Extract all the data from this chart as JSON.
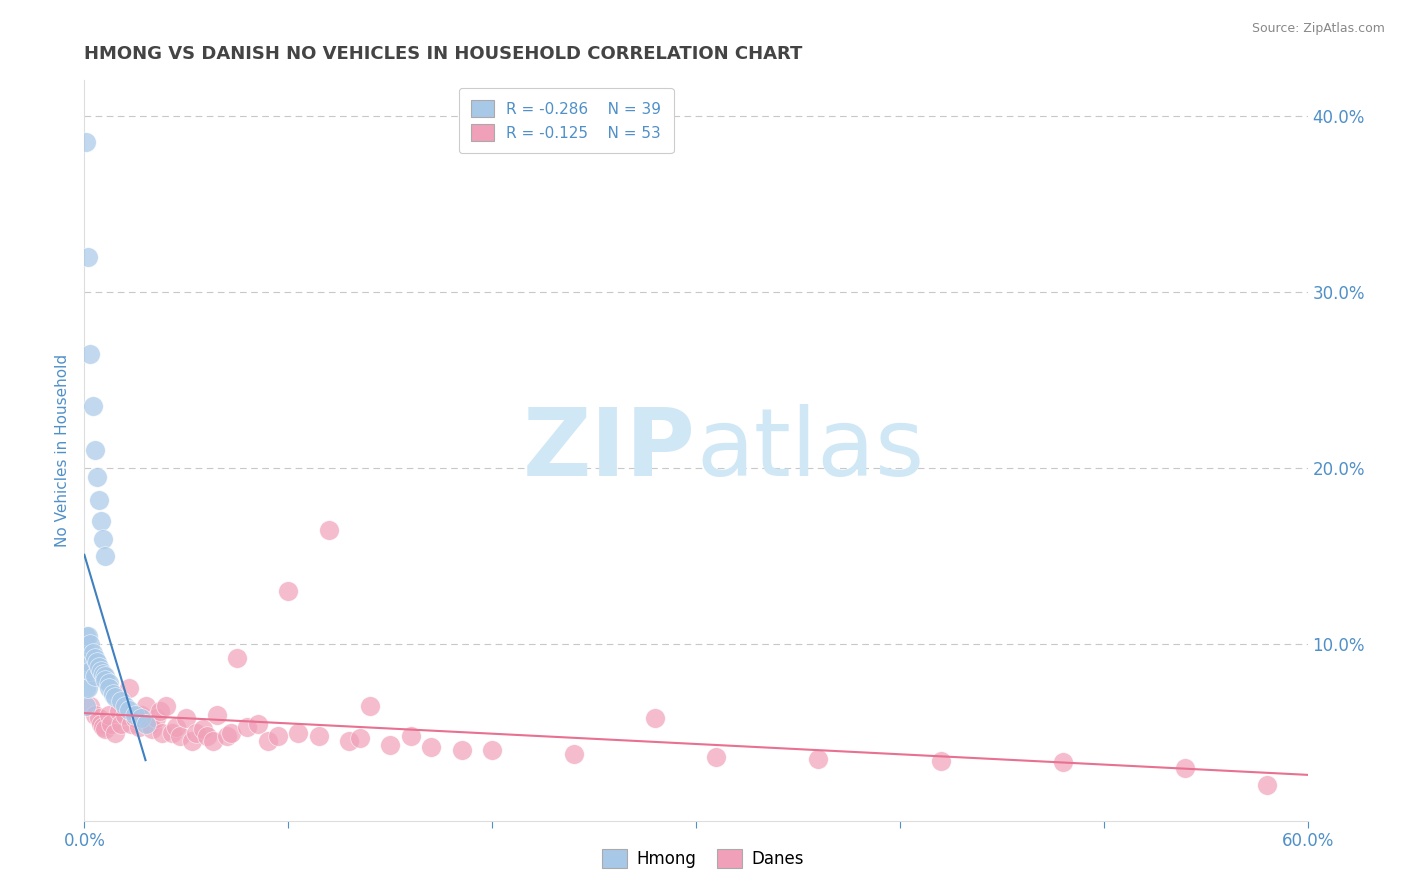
{
  "title": "HMONG VS DANISH NO VEHICLES IN HOUSEHOLD CORRELATION CHART",
  "source_text": "Source: ZipAtlas.com",
  "ylabel": "No Vehicles in Household",
  "xlim": [
    0.0,
    0.6
  ],
  "ylim": [
    0.0,
    0.42
  ],
  "xtick_values": [
    0.0,
    0.1,
    0.2,
    0.3,
    0.4,
    0.5,
    0.6
  ],
  "xticklabels": [
    "0.0%",
    "",
    "",
    "",
    "",
    "",
    "60.0%"
  ],
  "ytick_right_labels": [
    "10.0%",
    "20.0%",
    "30.0%",
    "40.0%"
  ],
  "ytick_right_values": [
    0.1,
    0.2,
    0.3,
    0.4
  ],
  "grid_color": "#c8c8c8",
  "background_color": "#ffffff",
  "hmong_color": "#a8c8e8",
  "danes_color": "#f0a0b8",
  "hmong_line_color": "#4080c0",
  "danes_line_color": "#e87090",
  "legend_r_hmong": "R = -0.286",
  "legend_n_hmong": "N = 39",
  "legend_r_danes": "R = -0.125",
  "legend_n_danes": "N = 53",
  "watermark_zip": "ZIP",
  "watermark_atlas": "atlas",
  "watermark_color": "#d0e8f5",
  "title_color": "#444444",
  "axis_label_color": "#5090c8",
  "tick_label_color": "#5090c8",
  "hmong_x": [
    0.001,
    0.001,
    0.001,
    0.001,
    0.001,
    0.001,
    0.002,
    0.002,
    0.002,
    0.002,
    0.003,
    0.003,
    0.003,
    0.004,
    0.004,
    0.005,
    0.005,
    0.005,
    0.006,
    0.006,
    0.007,
    0.007,
    0.008,
    0.008,
    0.009,
    0.009,
    0.01,
    0.01,
    0.01,
    0.012,
    0.012,
    0.014,
    0.015,
    0.018,
    0.02,
    0.022,
    0.025,
    0.028,
    0.03
  ],
  "hmong_y": [
    0.385,
    0.105,
    0.095,
    0.085,
    0.075,
    0.065,
    0.32,
    0.105,
    0.09,
    0.075,
    0.265,
    0.1,
    0.085,
    0.235,
    0.095,
    0.21,
    0.092,
    0.082,
    0.195,
    0.09,
    0.182,
    0.087,
    0.17,
    0.085,
    0.16,
    0.083,
    0.15,
    0.082,
    0.08,
    0.078,
    0.075,
    0.072,
    0.07,
    0.068,
    0.065,
    0.063,
    0.06,
    0.058,
    0.055
  ],
  "danes_x": [
    0.003,
    0.005,
    0.007,
    0.008,
    0.009,
    0.01,
    0.012,
    0.013,
    0.015,
    0.017,
    0.018,
    0.02,
    0.022,
    0.023,
    0.025,
    0.027,
    0.028,
    0.03,
    0.032,
    0.033,
    0.035,
    0.037,
    0.038,
    0.04,
    0.043,
    0.045,
    0.047,
    0.05,
    0.053,
    0.055,
    0.058,
    0.06,
    0.063,
    0.065,
    0.07,
    0.072,
    0.075,
    0.08,
    0.085,
    0.09,
    0.095,
    0.1,
    0.105,
    0.115,
    0.12,
    0.13,
    0.135,
    0.14,
    0.15,
    0.16,
    0.17,
    0.185,
    0.2
  ],
  "danes_y": [
    0.065,
    0.06,
    0.058,
    0.055,
    0.053,
    0.052,
    0.06,
    0.055,
    0.05,
    0.062,
    0.055,
    0.06,
    0.075,
    0.055,
    0.058,
    0.053,
    0.06,
    0.065,
    0.055,
    0.052,
    0.058,
    0.062,
    0.05,
    0.065,
    0.05,
    0.053,
    0.048,
    0.058,
    0.045,
    0.05,
    0.052,
    0.048,
    0.045,
    0.06,
    0.048,
    0.05,
    0.092,
    0.053,
    0.055,
    0.045,
    0.048,
    0.13,
    0.05,
    0.048,
    0.165,
    0.045,
    0.047,
    0.065,
    0.043,
    0.048,
    0.042,
    0.04,
    0.04
  ],
  "danes_extra_x": [
    0.24,
    0.28,
    0.31,
    0.36,
    0.42,
    0.48,
    0.54,
    0.58
  ],
  "danes_extra_y": [
    0.038,
    0.058,
    0.036,
    0.035,
    0.034,
    0.033,
    0.03,
    0.02
  ]
}
